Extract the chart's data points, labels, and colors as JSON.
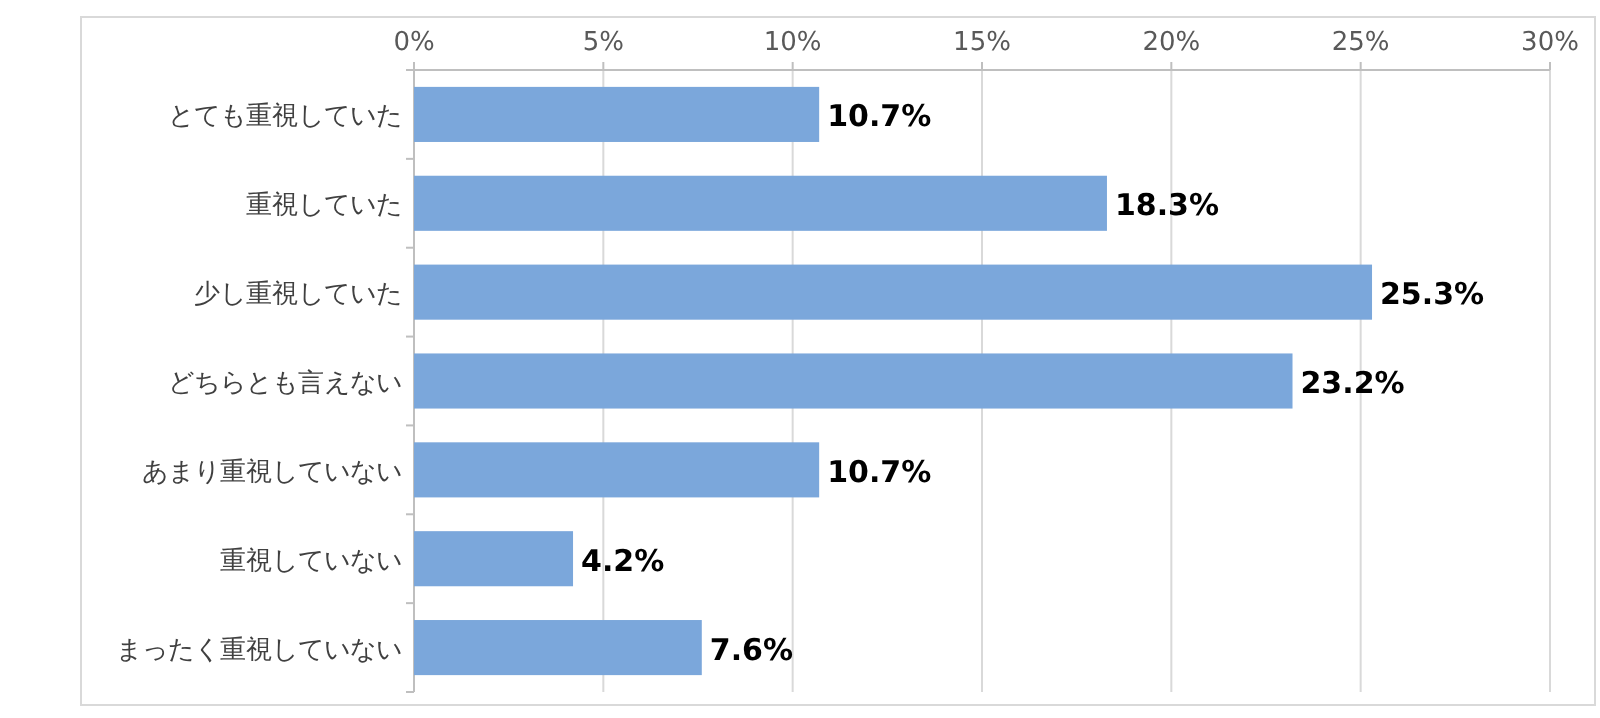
{
  "chart_data": {
    "type": "bar",
    "orientation": "horizontal",
    "categories": [
      "とても重視していた",
      "重視していた",
      "少し重視していた",
      "どちらとも言えない",
      "あまり重視していない",
      "重視していない",
      "まったく重視していない"
    ],
    "values": [
      10.7,
      18.3,
      25.3,
      23.2,
      10.7,
      4.2,
      7.6
    ],
    "value_labels": [
      "10.7%",
      "18.3%",
      "25.3%",
      "23.2%",
      "10.7%",
      "4.2%",
      "7.6%"
    ],
    "color": "#7ba7db",
    "xlim": [
      0,
      30
    ],
    "xticks": [
      {
        "value": 0,
        "label": "0%"
      },
      {
        "value": 5,
        "label": "5%"
      },
      {
        "value": 10,
        "label": "10%"
      },
      {
        "value": 15,
        "label": "15%"
      },
      {
        "value": 20,
        "label": "20%"
      },
      {
        "value": 25,
        "label": "25%"
      },
      {
        "value": 30,
        "label": "30%"
      }
    ],
    "grid": "x"
  }
}
